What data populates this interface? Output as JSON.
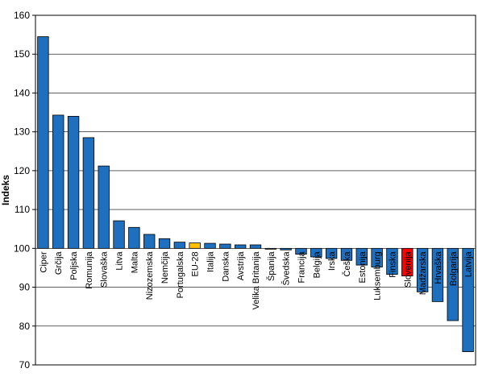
{
  "chart_data": {
    "type": "bar",
    "ylabel": "Indeks",
    "ylim": [
      70,
      160
    ],
    "ytick_step": 10,
    "grid": true,
    "baseline": 100,
    "categories": [
      "Ciper",
      "Grčija",
      "Poljska",
      "Romunija",
      "Slovaška",
      "Litva",
      "Malta",
      "Nizozemska",
      "Nemčija",
      "Portugalska",
      "EU-28",
      "Italija",
      "Danska",
      "Avstrija",
      "Velika Britanija",
      "Španija",
      "Švedska",
      "Francija",
      "Belgija",
      "Irska",
      "Češka",
      "Estonija",
      "Luksemburg",
      "Finska",
      "Slovenija",
      "Madžarska",
      "Hrvaška",
      "Bolgarija",
      "Latvija"
    ],
    "values": [
      154.5,
      134.3,
      134.0,
      128.5,
      121.2,
      107.1,
      105.4,
      103.6,
      102.5,
      101.6,
      101.4,
      101.3,
      101.1,
      100.9,
      100.9,
      99.9,
      99.6,
      98.5,
      97.8,
      97.4,
      96.9,
      95.7,
      95.2,
      93.3,
      92.9,
      88.8,
      86.3,
      81.4,
      73.4
    ],
    "colors": {
      "default": "#1f6fbf",
      "highlight_eu": "#ffc000",
      "highlight_country": "#ff0000",
      "stroke": "#000000",
      "grid": "#000000"
    },
    "highlights": {
      "EU-28": "highlight_eu",
      "Slovenija": "highlight_country"
    }
  }
}
